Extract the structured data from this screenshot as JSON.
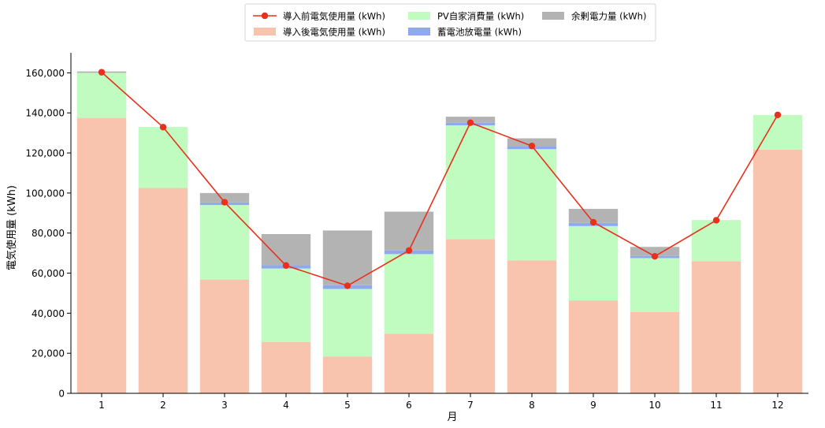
{
  "chart_data": {
    "type": "bar",
    "categories": [
      "1",
      "2",
      "3",
      "4",
      "5",
      "6",
      "7",
      "8",
      "9",
      "10",
      "11",
      "12"
    ],
    "xlabel": "月",
    "ylabel": "電気使用量 (kWh)",
    "ylim": [
      0,
      170000
    ],
    "yticks": [
      0,
      20000,
      40000,
      60000,
      80000,
      100000,
      120000,
      140000,
      160000
    ],
    "stacked": true,
    "grid": false,
    "legend_position": "top-center",
    "series": [
      {
        "name": "導入後電気使用量 (kWh)",
        "kind": "bar",
        "color": "#f9c4ae",
        "values": [
          137500,
          102500,
          56800,
          25700,
          18400,
          29700,
          77000,
          66400,
          46400,
          40600,
          66000,
          121700
        ]
      },
      {
        "name": "PV自家消費量 (kWh)",
        "kind": "bar",
        "color": "#c0fcc0",
        "values": [
          22500,
          30500,
          37200,
          36600,
          33700,
          39800,
          56800,
          55500,
          37100,
          26900,
          20500,
          17300
        ]
      },
      {
        "name": "蓄電池放電量 (kWh)",
        "kind": "bar",
        "color": "#8fa9ee",
        "values": [
          0,
          0,
          1300,
          1700,
          1900,
          1800,
          1300,
          1500,
          1600,
          1100,
          0,
          0
        ]
      },
      {
        "name": "余剰電力量 (kWh)",
        "kind": "bar",
        "color": "#b3b3b3",
        "values": [
          700,
          0,
          4700,
          15500,
          27300,
          19400,
          3000,
          3900,
          7000,
          4500,
          0,
          0
        ]
      },
      {
        "name": "導入前電気使用量 (kWh)",
        "kind": "line",
        "color": "#e8301c",
        "values": [
          160300,
          132900,
          95400,
          63800,
          53700,
          71300,
          135100,
          123500,
          85400,
          68400,
          86400,
          139000
        ]
      }
    ]
  }
}
